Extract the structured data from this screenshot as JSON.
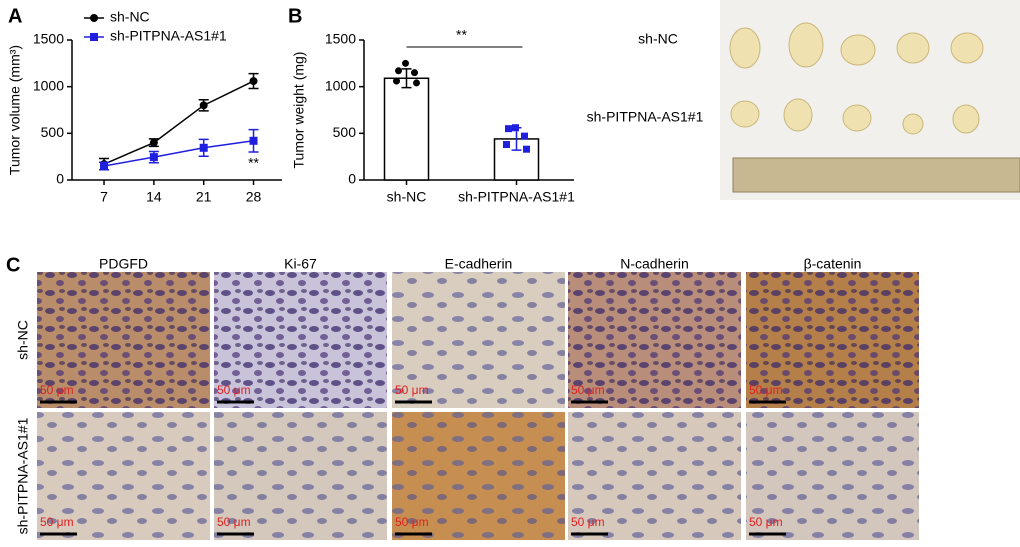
{
  "panels": [
    "A",
    "B",
    "C"
  ],
  "chart_data": [
    {
      "type": "line",
      "ylabel": "Tumor volume (mm³)",
      "x": [
        7,
        14,
        21,
        28
      ],
      "xlim": [
        2.5,
        32
      ],
      "xticks": [
        7,
        14,
        21,
        28
      ],
      "ylim": [
        0,
        1500
      ],
      "yticks": [
        0,
        500,
        1000,
        1500
      ],
      "legend": "upper left",
      "annotation": "**",
      "series": [
        {
          "name": "sh-NC",
          "color": "#000000",
          "marker": "circle",
          "values": [
            170,
            400,
            800,
            1060
          ],
          "errors": [
            60,
            40,
            60,
            80
          ]
        },
        {
          "name": "sh-PITPNA-AS1#1",
          "color": "#1f1fe0",
          "marker": "square",
          "values": [
            150,
            245,
            345,
            420
          ],
          "errors": [
            40,
            60,
            90,
            120
          ]
        }
      ]
    },
    {
      "type": "bar",
      "ylabel": "Tumor weight (mg)",
      "categories": [
        "sh-NC",
        "sh-PITPNA-AS1#1"
      ],
      "values": [
        1090,
        440
      ],
      "errors": [
        100,
        120
      ],
      "points": [
        [
          1250,
          1170,
          1150,
          1060,
          1040
        ],
        [
          560,
          550,
          470,
          380,
          330
        ]
      ],
      "point_colors": [
        "#000000",
        "#1f1fe0"
      ],
      "color": "#ffffff",
      "ylim": [
        0,
        1500
      ],
      "yticks": [
        0,
        500,
        1000,
        1500
      ],
      "annotation": "**"
    }
  ],
  "photo": {
    "rows": [
      "sh-NC",
      "sh-PITPNA-AS1#1"
    ]
  },
  "ihc": {
    "columns": [
      "PDGFD",
      "Ki-67",
      "E-cadherin",
      "N-cadherin",
      "β-catenin"
    ],
    "rows": [
      "sh-NC",
      "sh-PITPNA-AS1#1"
    ],
    "scale_bar": "50 μm"
  }
}
